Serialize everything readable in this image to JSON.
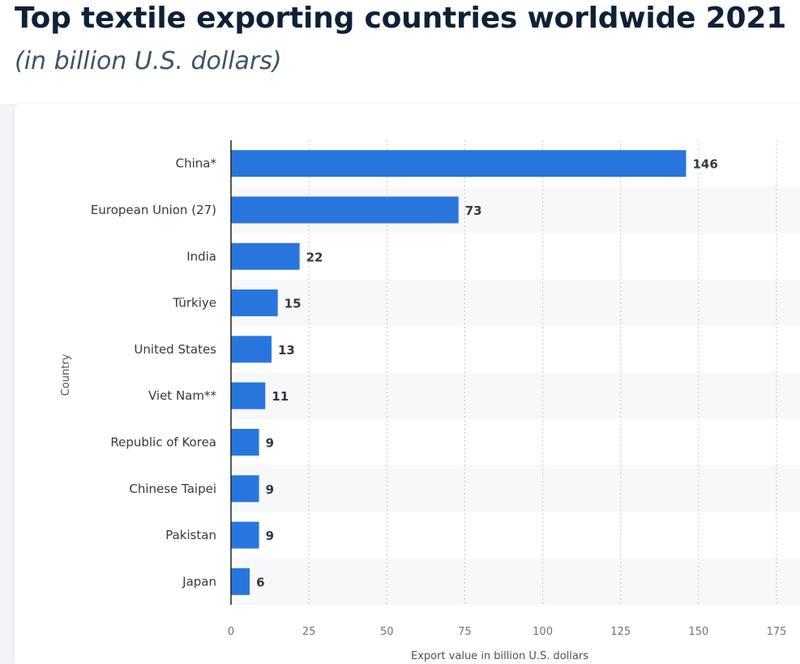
{
  "title": "Top textile exporting countries worldwide 2021",
  "subtitle": "(in billion U.S. dollars)",
  "chart_data": {
    "type": "bar",
    "orientation": "horizontal",
    "categories": [
      "China*",
      "European Union (27)",
      "India",
      "Türkiye",
      "United States",
      "Viet Nam**",
      "Republic of Korea",
      "Chinese Taipei",
      "Pakistan",
      "Japan"
    ],
    "values": [
      146,
      73,
      22,
      15,
      13,
      11,
      9,
      9,
      9,
      6
    ],
    "xlabel": "Export value in billion U.S. dollars",
    "ylabel": "Country",
    "xlim": [
      0,
      175
    ],
    "xticks": [
      0,
      25,
      50,
      75,
      100,
      125,
      150,
      175
    ],
    "grid": true,
    "bar_color": "#2876dd"
  }
}
